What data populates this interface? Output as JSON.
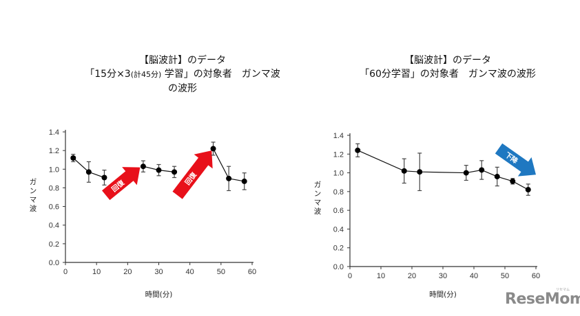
{
  "charts": [
    {
      "title_line1": "【脳波計】のデータ",
      "title_line2_a": "「15分×3",
      "title_line2_sub": "(計45分)",
      "title_line2_b": " 学習」の対象者　ガンマ波の波形",
      "ylabel": "ガンマ波",
      "xlabel": "時間(分)",
      "annotation_label": "回復",
      "annotation_color": "#e8101a"
    },
    {
      "title_line1": "【脳波計】のデータ",
      "title_line2": "「60分学習」の対象者　ガンマ波の波形",
      "ylabel": "ガンマ波",
      "xlabel": "時間(分)",
      "annotation_label": "下降",
      "annotation_color": "#1f78c1"
    }
  ],
  "logo": {
    "text": "ReseMom",
    "ruby": "リセマム"
  },
  "chart_data": [
    {
      "type": "line",
      "title": "【脳波計】のデータ 「15分×3 (計45分) 学習」の対象者 ガンマ波の波形",
      "xlabel": "時間(分)",
      "ylabel": "ガンマ波",
      "xlim": [
        0,
        60
      ],
      "ylim": [
        0.0,
        1.4
      ],
      "xticks": [
        0,
        10,
        20,
        30,
        40,
        50,
        60
      ],
      "yticks": [
        "0.0",
        "0.2",
        "0.4",
        "0.6",
        "0.8",
        "1.0",
        "1.2",
        "1.4"
      ],
      "grid": false,
      "series": [
        {
          "name": "ガンマ波",
          "x": [
            2.5,
            7.5,
            12.5,
            25,
            30,
            35,
            47.5,
            52.5,
            57.5
          ],
          "values": [
            1.12,
            0.97,
            0.91,
            1.03,
            0.99,
            0.97,
            1.22,
            0.9,
            0.87
          ],
          "error": [
            0.04,
            0.11,
            0.08,
            0.06,
            0.06,
            0.06,
            0.07,
            0.13,
            0.09
          ],
          "segments": [
            [
              0,
              2
            ],
            [
              3,
              5
            ],
            [
              6,
              8
            ]
          ]
        }
      ],
      "annotations": [
        {
          "text": "回復",
          "type": "arrow",
          "color": "#e8101a",
          "from": [
            13,
            0.72
          ],
          "to": [
            24,
            1.02
          ]
        },
        {
          "text": "回復",
          "type": "arrow",
          "color": "#e8101a",
          "from": [
            36,
            0.72
          ],
          "to": [
            47,
            1.2
          ]
        }
      ]
    },
    {
      "type": "line",
      "title": "【脳波計】のデータ 「60分学習」の対象者 ガンマ波の波形",
      "xlabel": "時間(分)",
      "ylabel": "ガンマ波",
      "xlim": [
        0,
        60
      ],
      "ylim": [
        0.0,
        1.4
      ],
      "xticks": [
        0,
        10,
        20,
        30,
        40,
        50,
        60
      ],
      "yticks": [
        "0.0",
        "0.2",
        "0.4",
        "0.6",
        "0.8",
        "1.0",
        "1.2",
        "1.4"
      ],
      "grid": false,
      "series": [
        {
          "name": "ガンマ波",
          "x": [
            2.5,
            17.5,
            22.5,
            37.5,
            42.5,
            47.5,
            52.5,
            57.5
          ],
          "values": [
            1.24,
            1.02,
            1.01,
            1.0,
            1.03,
            0.96,
            0.91,
            0.82
          ],
          "error": [
            0.07,
            0.13,
            0.2,
            0.08,
            0.1,
            0.1,
            0.03,
            0.06
          ],
          "segments": [
            [
              0,
              7
            ]
          ]
        }
      ],
      "annotations": [
        {
          "text": "下降",
          "type": "arrow",
          "color": "#1f78c1",
          "from": [
            48,
            1.26
          ],
          "to": [
            60,
            0.98
          ]
        }
      ]
    }
  ]
}
